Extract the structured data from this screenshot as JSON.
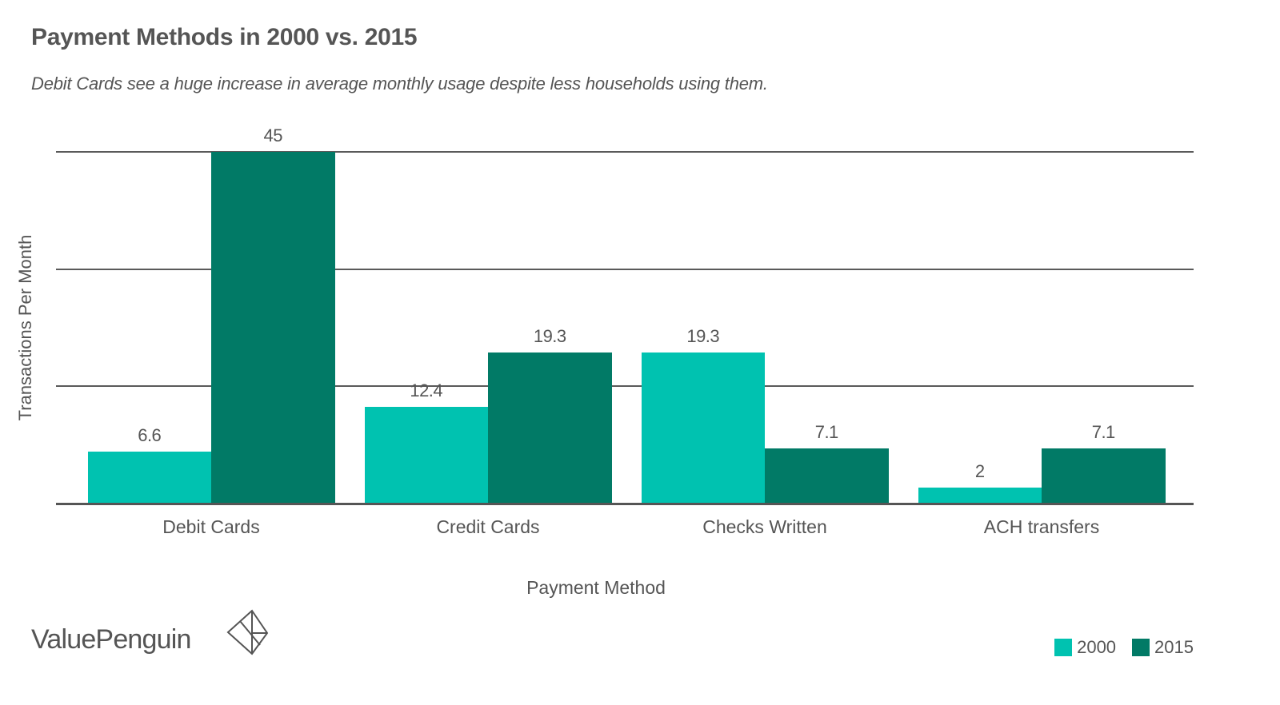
{
  "header": {
    "title": "Payment Methods in 2000 vs. 2015",
    "subtitle": "Debit Cards see a huge increase in average monthly usage despite less households using them."
  },
  "axes": {
    "ylabel": "Transactions Per Month",
    "xlabel": "Payment Method"
  },
  "colors": {
    "series_2000": "#00c2b0",
    "series_2015": "#017a66",
    "text": "#555555",
    "grid": "#5a5a5a"
  },
  "legend": {
    "items": [
      {
        "label": "2000",
        "color": "#00c2b0"
      },
      {
        "label": "2015",
        "color": "#017a66"
      }
    ]
  },
  "branding": {
    "logo_text": "ValuePenguin"
  },
  "chart_data": {
    "type": "bar",
    "title": "Payment Methods in 2000 vs. 2015",
    "subtitle": "Debit Cards see a huge increase in average monthly usage despite less households using them.",
    "xlabel": "Payment Method",
    "ylabel": "Transactions Per Month",
    "categories": [
      "Debit Cards",
      "Credit Cards",
      "Checks Written",
      "ACH transfers"
    ],
    "series": [
      {
        "name": "2000",
        "color": "#00c2b0",
        "values": [
          6.6,
          12.4,
          19.3,
          2
        ]
      },
      {
        "name": "2015",
        "color": "#017a66",
        "values": [
          45,
          19.3,
          7.1,
          7.1
        ]
      }
    ],
    "data_labels": {
      "2000": [
        "6.6",
        "12.4",
        "19.3",
        "2"
      ],
      "2015": [
        "45",
        "19.3",
        "7.1",
        "7.1"
      ]
    },
    "ylim": [
      0,
      45
    ],
    "gridlines": [
      0,
      15,
      30,
      45
    ],
    "y_tick_labels_visible": false,
    "grid": true,
    "legend_position": "bottom-right"
  }
}
